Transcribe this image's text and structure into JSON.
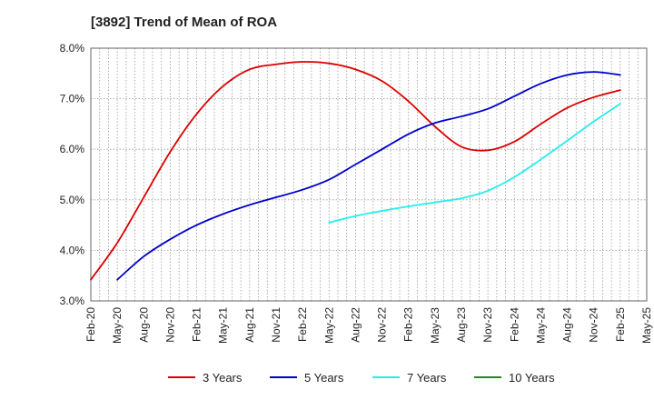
{
  "chart_data": {
    "type": "line",
    "title": "[3892]  Trend of Mean of ROA",
    "xlabel": "",
    "ylabel": "",
    "ylim": [
      3.0,
      8.0
    ],
    "y_ticks": [
      "3.0%",
      "4.0%",
      "5.0%",
      "6.0%",
      "7.0%",
      "8.0%"
    ],
    "y_tick_values": [
      3.0,
      4.0,
      5.0,
      6.0,
      7.0,
      8.0
    ],
    "x_ticks": [
      "Feb-20",
      "May-20",
      "Aug-20",
      "Nov-20",
      "Feb-21",
      "May-21",
      "Aug-21",
      "Nov-21",
      "Feb-22",
      "May-22",
      "Aug-22",
      "Nov-22",
      "Feb-23",
      "May-23",
      "Aug-23",
      "Nov-23",
      "Feb-24",
      "May-24",
      "Aug-24",
      "Nov-24",
      "Feb-25",
      "May-25"
    ],
    "grid": true,
    "legend_position": "bottom",
    "series": [
      {
        "name": "3 Years",
        "color": "#dd0000",
        "x": [
          "Feb-20",
          "May-20",
          "Aug-20",
          "Nov-20",
          "Feb-21",
          "May-21",
          "Aug-21",
          "Nov-21",
          "Feb-22",
          "May-22",
          "Aug-22",
          "Nov-22",
          "Feb-23",
          "May-23",
          "Aug-23",
          "Nov-23",
          "Feb-24",
          "May-24",
          "Aug-24",
          "Nov-24",
          "Feb-25"
        ],
        "values": [
          3.42,
          4.15,
          5.05,
          5.95,
          6.7,
          7.25,
          7.58,
          7.68,
          7.73,
          7.7,
          7.58,
          7.35,
          6.95,
          6.45,
          6.05,
          5.98,
          6.15,
          6.5,
          6.82,
          7.03,
          7.17
        ]
      },
      {
        "name": "5 Years",
        "color": "#0000cc",
        "x": [
          "May-20",
          "Aug-20",
          "Nov-20",
          "Feb-21",
          "May-21",
          "Aug-21",
          "Nov-21",
          "Feb-22",
          "May-22",
          "Aug-22",
          "Nov-22",
          "Feb-23",
          "May-23",
          "Aug-23",
          "Nov-23",
          "Feb-24",
          "May-24",
          "Aug-24",
          "Nov-24",
          "Feb-25"
        ],
        "values": [
          3.42,
          3.88,
          4.22,
          4.5,
          4.72,
          4.9,
          5.05,
          5.2,
          5.4,
          5.7,
          6.0,
          6.3,
          6.52,
          6.65,
          6.8,
          7.05,
          7.3,
          7.47,
          7.53,
          7.47
        ]
      },
      {
        "name": "7 Years",
        "color": "#22eeee",
        "x": [
          "May-22",
          "Aug-22",
          "Nov-22",
          "Feb-23",
          "May-23",
          "Aug-23",
          "Nov-23",
          "Feb-24",
          "May-24",
          "Aug-24",
          "Nov-24",
          "Feb-25"
        ],
        "values": [
          4.55,
          4.68,
          4.78,
          4.87,
          4.95,
          5.03,
          5.18,
          5.45,
          5.8,
          6.17,
          6.55,
          6.9
        ]
      },
      {
        "name": "10 Years",
        "color": "#228822",
        "x": [],
        "values": []
      }
    ]
  }
}
